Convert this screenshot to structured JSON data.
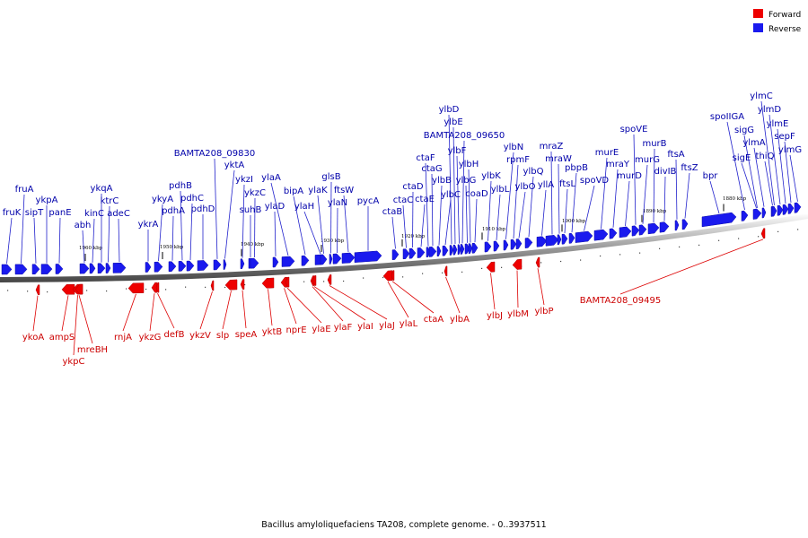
{
  "legend": [
    {
      "label": "Forward",
      "color": "#ee0000"
    },
    {
      "label": "Reverse",
      "color": "#1a1aee"
    }
  ],
  "caption": "Bacillus amyloliquefaciens TA208, complete genome. - 0..3937511",
  "ruler_labels": [
    "1960 kbp",
    "1950 kbp",
    "1940 kbp",
    "1930 kbp",
    "1920 kbp",
    "1910 kbp",
    "1900 kbp",
    "1890 kbp",
    "1880 kbp"
  ],
  "reverse_genes": [
    {
      "name": "fruK"
    },
    {
      "name": "fruA"
    },
    {
      "name": "sipT"
    },
    {
      "name": "ykpA"
    },
    {
      "name": "panE"
    },
    {
      "name": "abh"
    },
    {
      "name": "kinC"
    },
    {
      "name": "ykqA"
    },
    {
      "name": "ktrC"
    },
    {
      "name": "adeC"
    },
    {
      "name": "ykrA"
    },
    {
      "name": "ykyA"
    },
    {
      "name": "pdhA"
    },
    {
      "name": "pdhB"
    },
    {
      "name": "pdhC"
    },
    {
      "name": "pdhD"
    },
    {
      "name": "BAMTA208_09830"
    },
    {
      "name": "yktA"
    },
    {
      "name": "ykzI"
    },
    {
      "name": "suhB"
    },
    {
      "name": "ykzC"
    },
    {
      "name": "ylaD"
    },
    {
      "name": "ylaA"
    },
    {
      "name": "bipA"
    },
    {
      "name": "ylaH"
    },
    {
      "name": "ylaK"
    },
    {
      "name": "glsB"
    },
    {
      "name": "ylaN"
    },
    {
      "name": "ftsW"
    },
    {
      "name": "pycA"
    },
    {
      "name": "ctaB"
    },
    {
      "name": "ctaC"
    },
    {
      "name": "ctaD"
    },
    {
      "name": "ctaE"
    },
    {
      "name": "ctaF"
    },
    {
      "name": "ctaG"
    },
    {
      "name": "ylbB"
    },
    {
      "name": "ylbC"
    },
    {
      "name": "ylbD"
    },
    {
      "name": "ylbE"
    },
    {
      "name": "ylbF"
    },
    {
      "name": "BAMTA208_09650"
    },
    {
      "name": "ylbG"
    },
    {
      "name": "ylbH"
    },
    {
      "name": "coaD"
    },
    {
      "name": "ylbK"
    },
    {
      "name": "ylbL"
    },
    {
      "name": "ylbN"
    },
    {
      "name": "rpmF"
    },
    {
      "name": "ylbO"
    },
    {
      "name": "ylbQ"
    },
    {
      "name": "yllA"
    },
    {
      "name": "mraZ"
    },
    {
      "name": "mraW"
    },
    {
      "name": "ftsL"
    },
    {
      "name": "pbpB"
    },
    {
      "name": "spoVD"
    },
    {
      "name": "murE"
    },
    {
      "name": "mraY"
    },
    {
      "name": "murD"
    },
    {
      "name": "spoVE"
    },
    {
      "name": "murG"
    },
    {
      "name": "murB"
    },
    {
      "name": "divIB"
    },
    {
      "name": "ftsA"
    },
    {
      "name": "ftsZ"
    },
    {
      "name": "bpr"
    },
    {
      "name": "spoIIGA"
    },
    {
      "name": "sigE"
    },
    {
      "name": "sigG"
    },
    {
      "name": "ylmA"
    },
    {
      "name": "thiQ"
    },
    {
      "name": "ylmC"
    },
    {
      "name": "ylmD"
    },
    {
      "name": "ylmE"
    },
    {
      "name": "sepF"
    },
    {
      "name": "ylmG"
    }
  ],
  "forward_genes": [
    {
      "name": "ykoA"
    },
    {
      "name": "ampS"
    },
    {
      "name": "ykpC"
    },
    {
      "name": "mreBH"
    },
    {
      "name": "rnjA"
    },
    {
      "name": "ykzG"
    },
    {
      "name": "defB"
    },
    {
      "name": "ykzV"
    },
    {
      "name": "slp"
    },
    {
      "name": "speA"
    },
    {
      "name": "yktB"
    },
    {
      "name": "nprE"
    },
    {
      "name": "ylaE"
    },
    {
      "name": "ylaF"
    },
    {
      "name": "ylaI"
    },
    {
      "name": "ylaJ"
    },
    {
      "name": "ylaL"
    },
    {
      "name": "ctaA"
    },
    {
      "name": "ylbA"
    },
    {
      "name": "ylbJ"
    },
    {
      "name": "ylbM"
    },
    {
      "name": "ylbP"
    },
    {
      "name": "BAMTA208_09495"
    }
  ]
}
